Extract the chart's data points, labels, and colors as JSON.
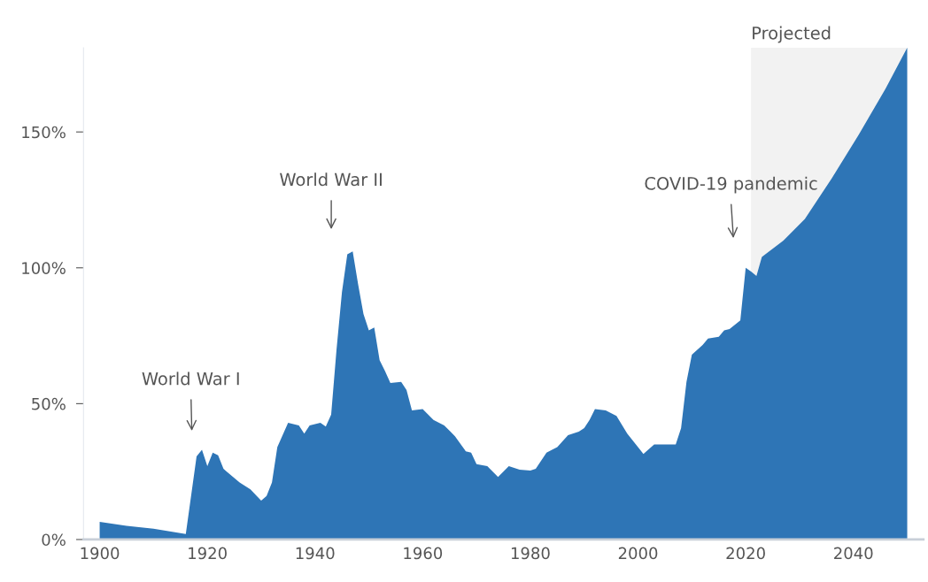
{
  "chart_data": {
    "type": "area",
    "x": [
      1900,
      1905,
      1910,
      1916,
      1918,
      1919,
      1920,
      1921,
      1922,
      1923,
      1926,
      1928,
      1930,
      1931,
      1932,
      1933,
      1935,
      1937,
      1938,
      1939,
      1941,
      1942,
      1943,
      1944,
      1945,
      1946,
      1947,
      1948,
      1949,
      1950,
      1951,
      1952,
      1953,
      1954,
      1956,
      1957,
      1958,
      1960,
      1962,
      1964,
      1966,
      1968,
      1969,
      1970,
      1972,
      1974,
      1976,
      1978,
      1980,
      1981,
      1983,
      1985,
      1987,
      1989,
      1990,
      1991,
      1992,
      1994,
      1996,
      1998,
      2001,
      2003,
      2005,
      2007,
      2008,
      2009,
      2010,
      2012,
      2013,
      2015,
      2016,
      2017,
      2019,
      2020,
      2021,
      2022,
      2023,
      2027,
      2031,
      2036,
      2041,
      2046,
      2050
    ],
    "series": [
      {
        "color": "#2e75b6",
        "values": [
          6.5,
          5,
          4,
          2,
          30.6,
          33,
          27,
          32,
          31,
          26,
          21,
          18.5,
          14.3,
          16,
          21,
          34,
          43,
          42,
          39,
          42,
          43,
          41.6,
          46,
          70,
          91,
          105,
          106,
          94,
          83,
          77,
          78,
          66,
          62,
          57.6,
          58,
          55,
          47.5,
          48,
          44,
          42,
          38,
          32.5,
          32,
          27.7,
          27,
          23,
          27,
          25.7,
          25.4,
          26,
          32,
          34,
          38.4,
          39.7,
          41,
          44,
          48,
          47.5,
          45.5,
          39,
          31.5,
          35,
          35,
          35,
          41,
          58,
          68,
          71.6,
          74,
          74.6,
          77,
          77.5,
          80.6,
          100,
          98.6,
          97,
          104,
          110,
          118,
          133,
          149,
          166,
          181
        ]
      }
    ],
    "xlim": [
      1897,
      2053
    ],
    "xticks": [
      1900,
      1920,
      1940,
      1960,
      1980,
      2000,
      2020,
      2040
    ],
    "ylim": [
      0,
      181
    ],
    "yticks": [
      {
        "value": 0,
        "label": "0%"
      },
      {
        "value": 50,
        "label": "50%"
      },
      {
        "value": 100,
        "label": "100%"
      },
      {
        "value": 150,
        "label": "150%"
      }
    ],
    "grid": false,
    "bands": [
      {
        "axis": "x",
        "from": 2021,
        "to": 2050,
        "label": "Projected",
        "color": "#f2f2f2"
      }
    ],
    "annotations": [
      "World War I",
      "World War II",
      "COVID-19 pandemic"
    ]
  }
}
